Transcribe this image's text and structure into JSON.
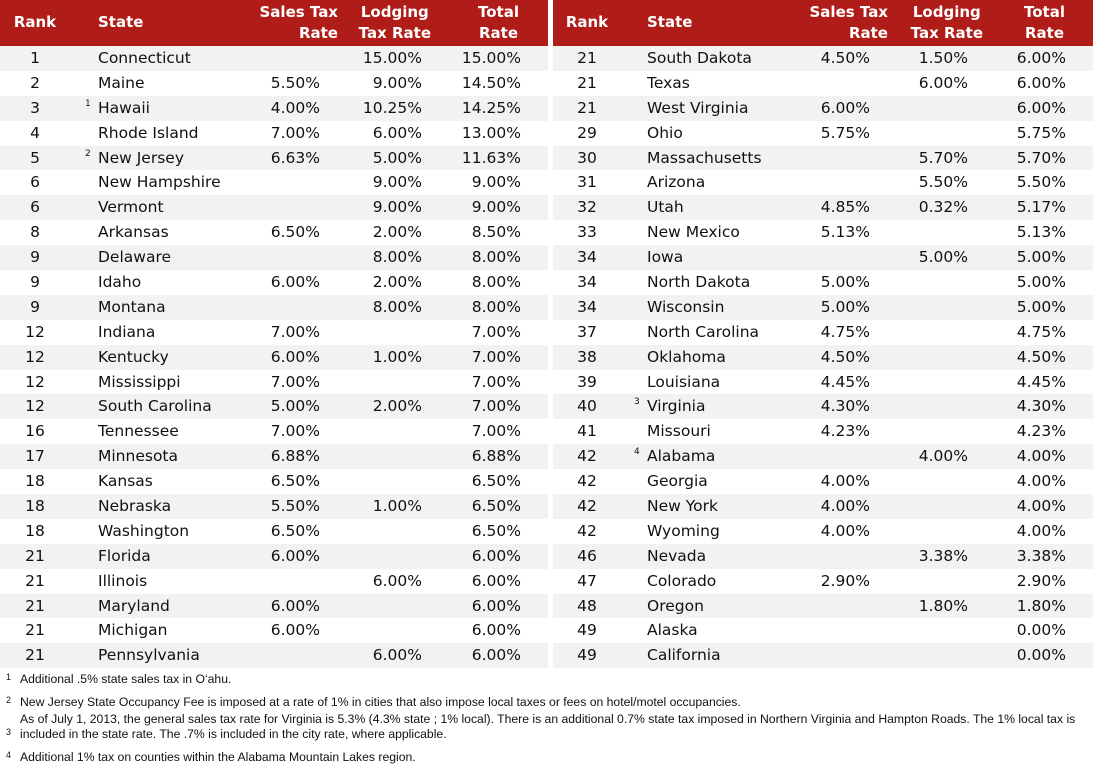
{
  "headers": {
    "rank": "Rank",
    "state": "State",
    "sales1": "Sales Tax",
    "sales2": "Rate",
    "lodging1": "Lodging",
    "lodging2": "Tax Rate",
    "total1": "Total",
    "total2": "Rate"
  },
  "colors": {
    "header": "#b01c17",
    "stripe": "#f2f2f2"
  },
  "left_rows": [
    [
      "1",
      "Connecticut",
      "",
      "",
      "15.00%",
      "15.00%"
    ],
    [
      "2",
      "Maine",
      "",
      "5.50%",
      "9.00%",
      "14.50%"
    ],
    [
      "3",
      "Hawaii",
      "1",
      "4.00%",
      "10.25%",
      "14.25%"
    ],
    [
      "4",
      "Rhode Island",
      "",
      "7.00%",
      "6.00%",
      "13.00%"
    ],
    [
      "5",
      "New Jersey",
      "2",
      "6.63%",
      "5.00%",
      "11.63%"
    ],
    [
      "6",
      "New Hampshire",
      "",
      "",
      "9.00%",
      "9.00%"
    ],
    [
      "6",
      "Vermont",
      "",
      "",
      "9.00%",
      "9.00%"
    ],
    [
      "8",
      "Arkansas",
      "",
      "6.50%",
      "2.00%",
      "8.50%"
    ],
    [
      "9",
      "Delaware",
      "",
      "",
      "8.00%",
      "8.00%"
    ],
    [
      "9",
      "Idaho",
      "",
      "6.00%",
      "2.00%",
      "8.00%"
    ],
    [
      "9",
      "Montana",
      "",
      "",
      "8.00%",
      "8.00%"
    ],
    [
      "12",
      "Indiana",
      "",
      "7.00%",
      "",
      "7.00%"
    ],
    [
      "12",
      "Kentucky",
      "",
      "6.00%",
      "1.00%",
      "7.00%"
    ],
    [
      "12",
      "Mississippi",
      "",
      "7.00%",
      "",
      "7.00%"
    ],
    [
      "12",
      "South Carolina",
      "",
      "5.00%",
      "2.00%",
      "7.00%"
    ],
    [
      "16",
      "Tennessee",
      "",
      "7.00%",
      "",
      "7.00%"
    ],
    [
      "17",
      "Minnesota",
      "",
      "6.88%",
      "",
      "6.88%"
    ],
    [
      "18",
      "Kansas",
      "",
      "6.50%",
      "",
      "6.50%"
    ],
    [
      "18",
      "Nebraska",
      "",
      "5.50%",
      "1.00%",
      "6.50%"
    ],
    [
      "18",
      "Washington",
      "",
      "6.50%",
      "",
      "6.50%"
    ],
    [
      "21",
      "Florida",
      "",
      "6.00%",
      "",
      "6.00%"
    ],
    [
      "21",
      "Illinois",
      "",
      "",
      "6.00%",
      "6.00%"
    ],
    [
      "21",
      "Maryland",
      "",
      "6.00%",
      "",
      "6.00%"
    ],
    [
      "21",
      "Michigan",
      "",
      "6.00%",
      "",
      "6.00%"
    ],
    [
      "21",
      "Pennsylvania",
      "",
      "",
      "6.00%",
      "6.00%"
    ]
  ],
  "right_rows": [
    [
      "21",
      "South Dakota",
      "",
      "4.50%",
      "1.50%",
      "6.00%"
    ],
    [
      "21",
      "Texas",
      "",
      "",
      "6.00%",
      "6.00%"
    ],
    [
      "21",
      "West Virginia",
      "",
      "6.00%",
      "",
      "6.00%"
    ],
    [
      "29",
      "Ohio",
      "",
      "5.75%",
      "",
      "5.75%"
    ],
    [
      "30",
      "Massachusetts",
      "",
      "",
      "5.70%",
      "5.70%"
    ],
    [
      "31",
      "Arizona",
      "",
      "",
      "5.50%",
      "5.50%"
    ],
    [
      "32",
      "Utah",
      "",
      "4.85%",
      "0.32%",
      "5.17%"
    ],
    [
      "33",
      "New Mexico",
      "",
      "5.13%",
      "",
      "5.13%"
    ],
    [
      "34",
      "Iowa",
      "",
      "",
      "5.00%",
      "5.00%"
    ],
    [
      "34",
      "North Dakota",
      "",
      "5.00%",
      "",
      "5.00%"
    ],
    [
      "34",
      "Wisconsin",
      "",
      "5.00%",
      "",
      "5.00%"
    ],
    [
      "37",
      "North Carolina",
      "",
      "4.75%",
      "",
      "4.75%"
    ],
    [
      "38",
      "Oklahoma",
      "",
      "4.50%",
      "",
      "4.50%"
    ],
    [
      "39",
      "Louisiana",
      "",
      "4.45%",
      "",
      "4.45%"
    ],
    [
      "40",
      "Virginia",
      "3",
      "4.30%",
      "",
      "4.30%"
    ],
    [
      "41",
      "Missouri",
      "",
      "4.23%",
      "",
      "4.23%"
    ],
    [
      "42",
      "Alabama",
      "4",
      "",
      "4.00%",
      "4.00%"
    ],
    [
      "42",
      "Georgia",
      "",
      "4.00%",
      "",
      "4.00%"
    ],
    [
      "42",
      "New York",
      "",
      "4.00%",
      "",
      "4.00%"
    ],
    [
      "42",
      "Wyoming",
      "",
      "4.00%",
      "",
      "4.00%"
    ],
    [
      "46",
      "Nevada",
      "",
      "",
      "3.38%",
      "3.38%"
    ],
    [
      "47",
      "Colorado",
      "",
      "2.90%",
      "",
      "2.90%"
    ],
    [
      "48",
      "Oregon",
      "",
      "",
      "1.80%",
      "1.80%"
    ],
    [
      "49",
      "Alaska",
      "",
      "",
      "",
      "0.00%"
    ],
    [
      "49",
      "California",
      "",
      "",
      "",
      "0.00%"
    ]
  ],
  "footnotes": [
    {
      "n": "1",
      "text": "Additional .5% state sales tax in O‘ahu."
    },
    {
      "n": "2",
      "text": "New Jersey State Occupancy Fee is imposed at a rate of 1% in cities that also impose local taxes or fees on hotel/motel occupancies."
    },
    {
      "n": "3",
      "text": "As of July 1, 2013, the general sales tax rate for Virginia is 5.3% (4.3% state ; 1% local). There is an additional 0.7% state tax imposed in Northern Virginia and Hampton Roads. The 1% local tax is included in the state rate. The .7% is included in the city rate, where applicable."
    },
    {
      "n": "4",
      "text": "Additional 1% tax on counties within the Alabama Mountain Lakes region."
    }
  ]
}
